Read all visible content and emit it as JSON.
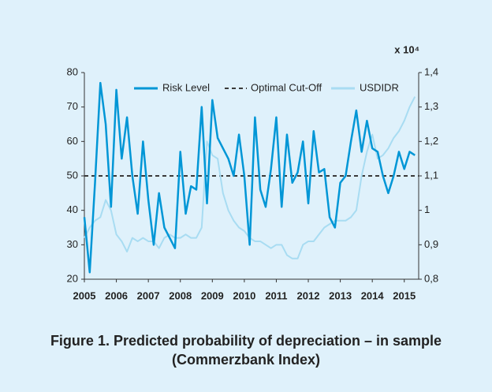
{
  "chart_data": {
    "type": "line",
    "y2_label": "x 10⁴",
    "caption": [
      "Figure 1. Predicted probability of depreciation – in sample",
      "(Commerzbank Index)"
    ],
    "x": [
      2005.0,
      2005.167,
      2005.333,
      2005.5,
      2005.667,
      2005.833,
      2006.0,
      2006.167,
      2006.333,
      2006.5,
      2006.667,
      2006.833,
      2007.0,
      2007.167,
      2007.333,
      2007.5,
      2007.667,
      2007.833,
      2008.0,
      2008.167,
      2008.333,
      2008.5,
      2008.667,
      2008.833,
      2009.0,
      2009.167,
      2009.333,
      2009.5,
      2009.667,
      2009.833,
      2010.0,
      2010.167,
      2010.333,
      2010.5,
      2010.667,
      2010.833,
      2011.0,
      2011.167,
      2011.333,
      2011.5,
      2011.667,
      2011.833,
      2012.0,
      2012.167,
      2012.333,
      2012.5,
      2012.667,
      2012.833,
      2013.0,
      2013.167,
      2013.333,
      2013.5,
      2013.667,
      2013.833,
      2014.0,
      2014.167,
      2014.333,
      2014.5,
      2014.667,
      2014.833,
      2015.0,
      2015.167,
      2015.333
    ],
    "series": [
      {
        "name": "Risk Level",
        "color": "#0096d6",
        "values": [
          38,
          22,
          48,
          77,
          65,
          41,
          75,
          55,
          67,
          50,
          39,
          60,
          43,
          30,
          45,
          35,
          32,
          29,
          57,
          39,
          47,
          46,
          70,
          42,
          72,
          61,
          58,
          55,
          50,
          62,
          50,
          30,
          67,
          46,
          41,
          52,
          67,
          41,
          62,
          48,
          51,
          60,
          42,
          63,
          51,
          52,
          38,
          35,
          48,
          50,
          60,
          69,
          57,
          66,
          58,
          57,
          50,
          45,
          50,
          57,
          52,
          57,
          56
        ]
      },
      {
        "name": "USDIDR",
        "color": "#a8dcf2",
        "axis": "y2",
        "values": [
          0.92,
          0.95,
          0.97,
          0.98,
          1.03,
          1.0,
          0.93,
          0.91,
          0.88,
          0.92,
          0.91,
          0.92,
          0.91,
          0.91,
          0.89,
          0.92,
          0.93,
          0.92,
          0.92,
          0.93,
          0.92,
          0.92,
          0.95,
          1.2,
          1.16,
          1.15,
          1.05,
          1.0,
          0.97,
          0.95,
          0.94,
          0.92,
          0.91,
          0.91,
          0.9,
          0.89,
          0.9,
          0.9,
          0.87,
          0.86,
          0.86,
          0.9,
          0.91,
          0.91,
          0.93,
          0.95,
          0.96,
          0.97,
          0.97,
          0.97,
          0.98,
          1.0,
          1.1,
          1.17,
          1.22,
          1.15,
          1.16,
          1.18,
          1.21,
          1.23,
          1.26,
          1.3,
          1.33
        ]
      }
    ],
    "reference_lines": [
      {
        "name": "Optimal Cut-Off",
        "value": 50,
        "color": "#3a3a3a",
        "dashed": true
      }
    ],
    "xlim": [
      2005,
      2015.45
    ],
    "xticks": [
      2005,
      2006,
      2007,
      2008,
      2009,
      2010,
      2011,
      2012,
      2013,
      2014,
      2015
    ],
    "ylim": [
      20,
      80
    ],
    "yticks": [
      20,
      30,
      40,
      50,
      60,
      70,
      80
    ],
    "y2lim": [
      0.8,
      1.4
    ],
    "y2ticks": [
      {
        "value": 0.8,
        "label": "0,8"
      },
      {
        "value": 0.9,
        "label": "0,9"
      },
      1,
      {
        "value": 1.1,
        "label": "1,1"
      },
      {
        "value": 1.2,
        "label": "1,2"
      },
      {
        "value": 1.3,
        "label": "1,3"
      },
      {
        "value": 1.4,
        "label": "1,4"
      }
    ],
    "grid": false,
    "legend": "top"
  }
}
